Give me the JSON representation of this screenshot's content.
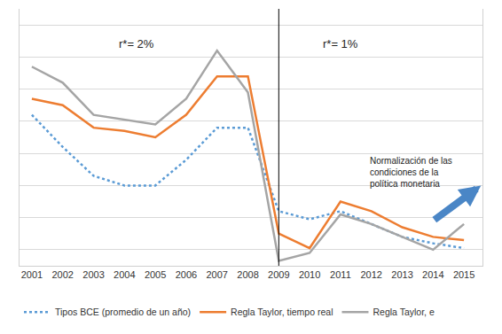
{
  "chart_data": {
    "type": "line",
    "x": [
      2001,
      2002,
      2003,
      2004,
      2005,
      2006,
      2007,
      2008,
      2009,
      2010,
      2011,
      2012,
      2013,
      2014,
      2015
    ],
    "series": [
      {
        "name": "Tipos BCE (promedio de un año)",
        "color": "#5b9bd5",
        "line_style": "dotted",
        "values": [
          4.2,
          3.2,
          2.3,
          2.0,
          2.0,
          2.8,
          3.8,
          3.8,
          1.2,
          0.95,
          1.2,
          0.8,
          0.4,
          0.2,
          0.05
        ]
      },
      {
        "name": "Regla Taylor, tiempo real",
        "color": "#ed7d31",
        "line_style": "solid",
        "values": [
          4.7,
          4.5,
          3.8,
          3.7,
          3.5,
          4.2,
          5.4,
          5.4,
          0.5,
          0.05,
          1.5,
          1.2,
          0.7,
          0.4,
          0.3
        ]
      },
      {
        "name": "Regla Taylor, e",
        "color": "#a5a5a5",
        "line_style": "solid",
        "values": [
          5.7,
          5.2,
          4.2,
          4.05,
          3.9,
          4.7,
          6.2,
          4.9,
          -0.35,
          -0.1,
          1.1,
          0.8,
          0.4,
          0.0,
          0.8
        ]
      }
    ],
    "xlim": [
      2000.6,
      2015.6
    ],
    "xticks": [
      2001,
      2002,
      2003,
      2004,
      2005,
      2006,
      2007,
      2008,
      2009,
      2010,
      2011,
      2012,
      2013,
      2014,
      2015
    ],
    "ylim": [
      -0.5,
      7.5
    ],
    "yticks": [
      0,
      1,
      2,
      3,
      4,
      5,
      6,
      7
    ],
    "grid": true,
    "tick_labels": "x",
    "legend": "bottom",
    "vline_x": 2009,
    "annotations": [
      {
        "lines": [
          "r*= 2%"
        ],
        "x": 2004.4,
        "y": 6.4
      },
      {
        "lines": [
          "r*= 1%"
        ],
        "x": 2011.0,
        "y": 6.4
      },
      {
        "lines": [
          "Normalización de las",
          "condiciones de la",
          "política monetaria"
        ],
        "x": 2013.3,
        "y": 2.4
      }
    ],
    "arrow": {
      "from_x": 2014.0,
      "from_y": 0.9,
      "to_x": 2015.55,
      "to_y": 2.0,
      "color": "#4a86c6"
    }
  }
}
